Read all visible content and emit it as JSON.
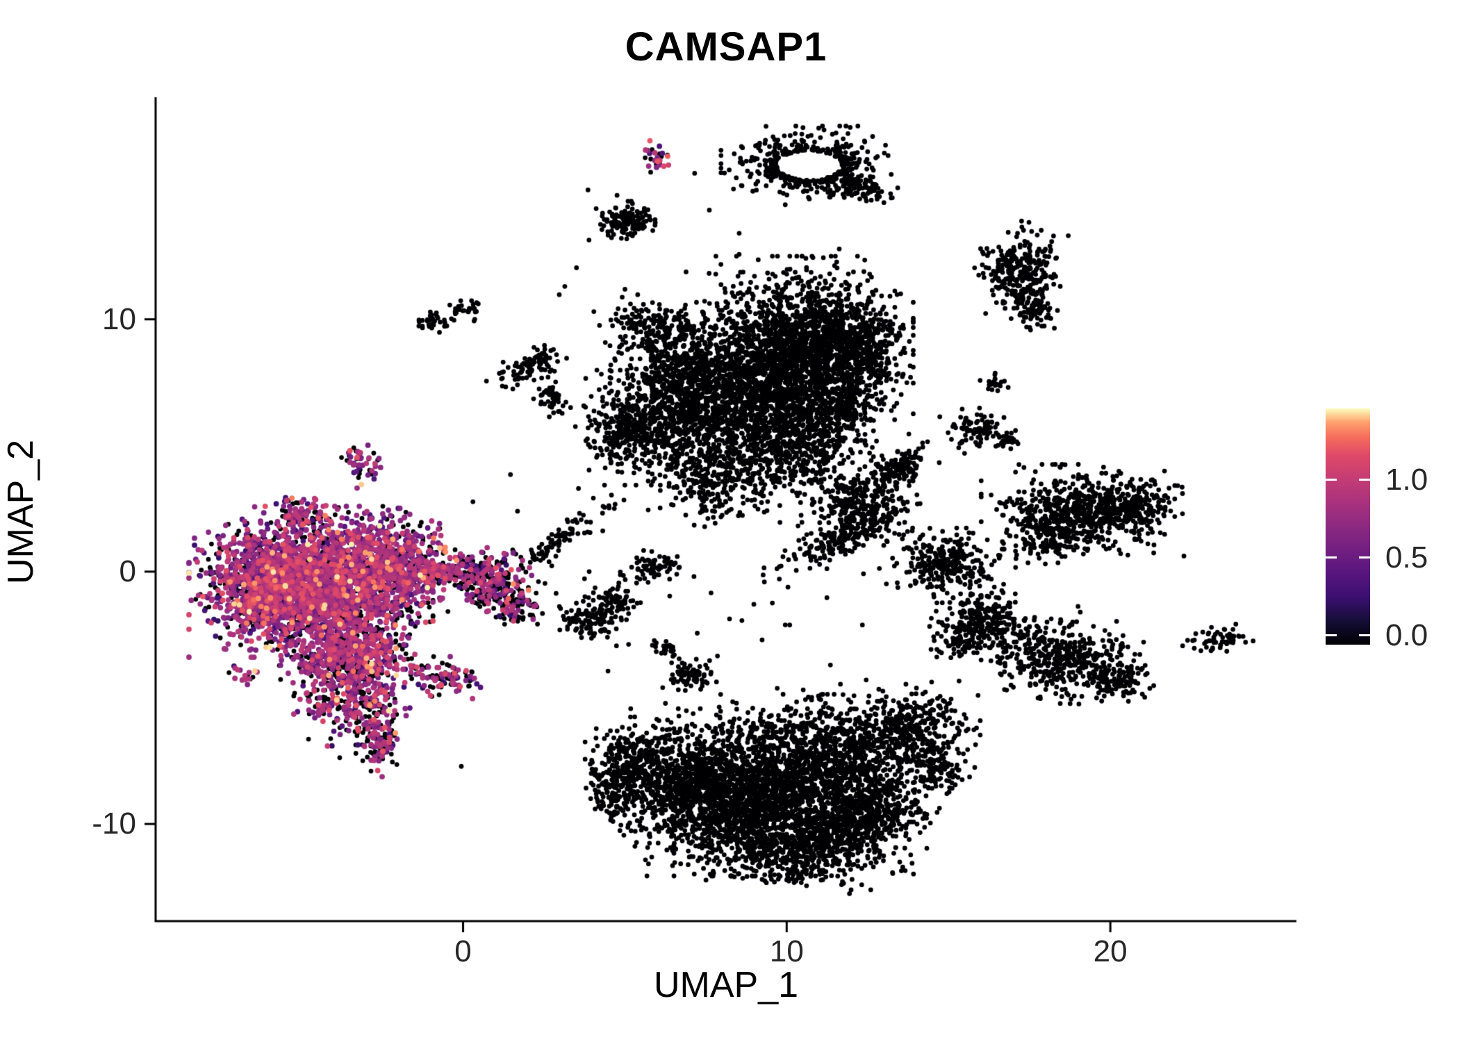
{
  "title": "CAMSAP1",
  "axes": {
    "x_label": "UMAP_1",
    "y_label": "UMAP_2",
    "x_ticks": [
      {
        "value": 0,
        "label": "0"
      },
      {
        "value": 10,
        "label": "10"
      },
      {
        "value": 20,
        "label": "20"
      }
    ],
    "y_ticks": [
      {
        "value": -10,
        "label": "-10"
      },
      {
        "value": 0,
        "label": "0"
      },
      {
        "value": 10,
        "label": "10"
      }
    ]
  },
  "colorbar": {
    "ticks": [
      {
        "value": 1.0,
        "label": "1.0"
      },
      {
        "value": 0.5,
        "label": "0.5"
      },
      {
        "value": 0.0,
        "label": "0.0"
      }
    ],
    "domain": [
      -0.06,
      1.46
    ],
    "gradient": [
      {
        "p": 0.0,
        "c": "#000004"
      },
      {
        "p": 0.1,
        "c": "#140e36"
      },
      {
        "p": 0.2,
        "c": "#3b0f70"
      },
      {
        "p": 0.3,
        "c": "#57157e"
      },
      {
        "p": 0.4,
        "c": "#721f81"
      },
      {
        "p": 0.5,
        "c": "#8c2981"
      },
      {
        "p": 0.6,
        "c": "#a8327d"
      },
      {
        "p": 0.7,
        "c": "#c43c75"
      },
      {
        "p": 0.8,
        "c": "#de4968"
      },
      {
        "p": 0.88,
        "c": "#f66e5c"
      },
      {
        "p": 0.94,
        "c": "#fe9f6d"
      },
      {
        "p": 0.97,
        "c": "#fece91"
      },
      {
        "p": 1.0,
        "c": "#fcfdbf"
      }
    ]
  },
  "chart_data": {
    "type": "scatter",
    "title": "CAMSAP1",
    "xlabel": "UMAP_1",
    "ylabel": "UMAP_2",
    "xlim": [
      -9.5,
      25.75
    ],
    "ylim": [
      -13.85,
      18.8
    ],
    "grid": false,
    "legend_position": "right",
    "expression_range": [
      0.0,
      1.4
    ],
    "zero_expression_color": "#000004",
    "clusters": [
      {
        "x": 10.7,
        "y": 16.1,
        "sx": 1.05,
        "sy": 0.6,
        "n": 430,
        "f": 0,
        "ring": 0.6
      },
      {
        "x": 12.3,
        "y": 15.2,
        "sx": 0.5,
        "sy": 0.22,
        "n": 70,
        "f": 0,
        "r": -25
      },
      {
        "x": 5.1,
        "y": 13.9,
        "sx": 0.38,
        "sy": 0.3,
        "n": 150,
        "f": 0
      },
      {
        "x": -0.9,
        "y": 9.95,
        "sx": 0.28,
        "sy": 0.18,
        "n": 35,
        "f": 0
      },
      {
        "x": 0.05,
        "y": 10.35,
        "sx": 0.22,
        "sy": 0.16,
        "n": 30,
        "f": 0
      },
      {
        "x": 2.1,
        "y": 8.1,
        "sx": 0.55,
        "sy": 0.28,
        "n": 90,
        "f": 0,
        "r": 40
      },
      {
        "x": 2.75,
        "y": 6.9,
        "sx": 0.22,
        "sy": 0.35,
        "n": 45,
        "f": 0
      },
      {
        "x": 4.9,
        "y": 5.6,
        "sx": 0.55,
        "sy": 0.65,
        "n": 170,
        "f": 0
      },
      {
        "x": 6.2,
        "y": 5.9,
        "sx": 0.95,
        "sy": 0.95,
        "n": 520,
        "f": 0
      },
      {
        "x": 6.0,
        "y": 9.5,
        "sx": 0.75,
        "sy": 0.65,
        "n": 230,
        "f": 0
      },
      {
        "x": 7.4,
        "y": 7.6,
        "sx": 1.1,
        "sy": 0.95,
        "n": 700,
        "f": 0
      },
      {
        "x": 8.7,
        "y": 6.3,
        "sx": 1.1,
        "sy": 1.05,
        "n": 480,
        "f": 0
      },
      {
        "x": 10.4,
        "y": 8.6,
        "sx": 1.35,
        "sy": 1.5,
        "n": 2200,
        "f": 0
      },
      {
        "x": 12.1,
        "y": 8.9,
        "sx": 0.7,
        "sy": 0.8,
        "n": 350,
        "f": 0
      },
      {
        "x": 9.3,
        "y": 4.6,
        "sx": 1.3,
        "sy": 0.9,
        "n": 360,
        "f": 0
      },
      {
        "x": 7.8,
        "y": 3.4,
        "sx": 0.8,
        "sy": 0.65,
        "n": 190,
        "f": 0
      },
      {
        "x": 10.6,
        "y": 5.3,
        "sx": 0.7,
        "sy": 0.7,
        "n": 240,
        "f": 0
      },
      {
        "x": 11.9,
        "y": 6.5,
        "sx": 0.5,
        "sy": 0.5,
        "n": 120,
        "f": 0
      },
      {
        "x": 3.0,
        "y": 1.3,
        "sx": 1.05,
        "sy": 0.18,
        "n": 90,
        "f": 0,
        "r": 42
      },
      {
        "x": 12.3,
        "y": 2.6,
        "sx": 0.75,
        "sy": 0.6,
        "n": 300,
        "f": 0
      },
      {
        "x": 11.4,
        "y": 1.1,
        "sx": 1.05,
        "sy": 0.3,
        "n": 140,
        "f": 0,
        "r": 25
      },
      {
        "x": 13.3,
        "y": 3.9,
        "sx": 0.5,
        "sy": 0.3,
        "n": 90,
        "f": 0,
        "r": 30
      },
      {
        "x": 13.6,
        "y": 4.3,
        "sx": 0.45,
        "sy": 0.18,
        "n": 50,
        "f": 0,
        "r": 35
      },
      {
        "x": 17.2,
        "y": 11.9,
        "sx": 0.55,
        "sy": 0.75,
        "n": 260,
        "f": 0,
        "r": -15
      },
      {
        "x": 17.7,
        "y": 10.6,
        "sx": 0.3,
        "sy": 0.45,
        "n": 80,
        "f": 0
      },
      {
        "x": 16.4,
        "y": 7.4,
        "sx": 0.22,
        "sy": 0.18,
        "n": 22,
        "f": 0
      },
      {
        "x": 15.9,
        "y": 5.6,
        "sx": 0.45,
        "sy": 0.35,
        "n": 90,
        "f": 0
      },
      {
        "x": 16.8,
        "y": 5.2,
        "sx": 0.22,
        "sy": 0.18,
        "n": 25,
        "f": 0
      },
      {
        "x": 19.0,
        "y": 2.3,
        "sx": 1.15,
        "sy": 0.75,
        "n": 620,
        "f": 0
      },
      {
        "x": 20.8,
        "y": 2.6,
        "sx": 0.55,
        "sy": 0.5,
        "n": 150,
        "f": 0
      },
      {
        "x": 18.0,
        "y": 1.2,
        "sx": 0.5,
        "sy": 0.4,
        "n": 80,
        "f": 0
      },
      {
        "x": 14.9,
        "y": 0.3,
        "sx": 0.7,
        "sy": 0.55,
        "n": 260,
        "f": 0
      },
      {
        "x": 16.1,
        "y": -1.8,
        "sx": 0.6,
        "sy": 0.5,
        "n": 200,
        "f": 0
      },
      {
        "x": 15.4,
        "y": -2.7,
        "sx": 0.4,
        "sy": 0.35,
        "n": 90,
        "f": 0
      },
      {
        "x": 18.4,
        "y": -3.3,
        "sx": 1.15,
        "sy": 0.7,
        "n": 460,
        "f": 0,
        "r": -18
      },
      {
        "x": 20.3,
        "y": -4.3,
        "sx": 0.5,
        "sy": 0.35,
        "n": 90,
        "f": 0
      },
      {
        "x": 23.3,
        "y": -2.7,
        "sx": 0.42,
        "sy": 0.22,
        "n": 55,
        "f": 0,
        "r": 15
      },
      {
        "x": 5.2,
        "y": -7.6,
        "sx": 0.55,
        "sy": 0.75,
        "n": 220,
        "f": 0
      },
      {
        "x": 4.7,
        "y": -8.8,
        "sx": 0.4,
        "sy": 0.6,
        "n": 130,
        "f": 0
      },
      {
        "x": 6.9,
        "y": -7.9,
        "sx": 0.95,
        "sy": 0.95,
        "n": 500,
        "f": 0
      },
      {
        "x": 8.3,
        "y": -9.2,
        "sx": 1.4,
        "sy": 1.1,
        "n": 1300,
        "f": 0
      },
      {
        "x": 10.3,
        "y": -8.3,
        "sx": 1.25,
        "sy": 1.15,
        "n": 900,
        "f": 0
      },
      {
        "x": 12.3,
        "y": -7.2,
        "sx": 1.05,
        "sy": 0.9,
        "n": 450,
        "f": 0
      },
      {
        "x": 13.9,
        "y": -6.1,
        "sx": 0.8,
        "sy": 0.7,
        "n": 270,
        "f": 0
      },
      {
        "x": 11.6,
        "y": -10.4,
        "sx": 1.05,
        "sy": 0.85,
        "n": 550,
        "f": 0
      },
      {
        "x": 9.6,
        "y": -11.2,
        "sx": 0.9,
        "sy": 0.6,
        "n": 300,
        "f": 0
      },
      {
        "x": 12.9,
        "y": -9.4,
        "sx": 0.7,
        "sy": 0.6,
        "n": 250,
        "f": 0
      },
      {
        "x": 10.5,
        "y": -6.2,
        "sx": 1.6,
        "sy": 0.7,
        "n": 200,
        "f": 0
      },
      {
        "x": 14.6,
        "y": -7.8,
        "sx": 0.5,
        "sy": 0.45,
        "n": 110,
        "f": 0
      },
      {
        "x": 4.0,
        "y": -1.9,
        "sx": 0.5,
        "sy": 0.4,
        "n": 130,
        "f": 0
      },
      {
        "x": 4.8,
        "y": -1.1,
        "sx": 0.3,
        "sy": 0.25,
        "n": 60,
        "f": 0
      },
      {
        "x": 5.9,
        "y": 0.15,
        "sx": 0.4,
        "sy": 0.3,
        "n": 70,
        "f": 0
      },
      {
        "x": 7.0,
        "y": -4.1,
        "sx": 0.32,
        "sy": 0.28,
        "n": 70,
        "f": 0
      },
      {
        "x": 6.3,
        "y": -3.1,
        "sx": 0.2,
        "sy": 0.18,
        "n": 25,
        "f": 0
      },
      {
        "x": 9.5,
        "y": 0.5,
        "sx": 5.0,
        "sy": 3.5,
        "n": 110,
        "f": 0
      },
      {
        "x": 8.0,
        "y": 12.5,
        "sx": 3.0,
        "sy": 1.5,
        "n": 18,
        "f": 0
      },
      {
        "x": -4.7,
        "y": -0.4,
        "sx": 1.45,
        "sy": 1.15,
        "n": 2600,
        "f": 0.78
      },
      {
        "x": -2.0,
        "y": 0.3,
        "sx": 0.75,
        "sy": 0.85,
        "n": 500,
        "f": 0.8
      },
      {
        "x": -6.3,
        "y": -0.9,
        "sx": 0.7,
        "sy": 0.85,
        "n": 380,
        "f": 0.7
      },
      {
        "x": -3.6,
        "y": -3.3,
        "sx": 0.85,
        "sy": 0.8,
        "n": 700,
        "f": 0.75
      },
      {
        "x": -5.0,
        "y": 2.2,
        "sx": 0.45,
        "sy": 0.35,
        "n": 90,
        "f": 0.7
      },
      {
        "x": -3.0,
        "y": -5.6,
        "sx": 0.45,
        "sy": 0.75,
        "n": 180,
        "f": 0.6,
        "r": -25
      },
      {
        "x": -2.55,
        "y": -6.9,
        "sx": 0.28,
        "sy": 0.5,
        "n": 80,
        "f": 0.5,
        "r": -20
      },
      {
        "x": -4.4,
        "y": -5.2,
        "sx": 0.32,
        "sy": 0.28,
        "n": 55,
        "f": 0.6
      },
      {
        "x": -3.1,
        "y": 4.3,
        "sx": 0.28,
        "sy": 0.38,
        "n": 50,
        "f": 0.7,
        "r": 20
      },
      {
        "x": 6.0,
        "y": 16.4,
        "sx": 0.2,
        "sy": 0.26,
        "n": 28,
        "f": 0.65
      },
      {
        "x": -0.5,
        "y": -4.2,
        "sx": 0.5,
        "sy": 0.32,
        "n": 95,
        "f": 0.55
      },
      {
        "x": -6.7,
        "y": -4.1,
        "sx": 0.22,
        "sy": 0.18,
        "n": 18,
        "f": 0.7
      },
      {
        "x": 0.9,
        "y": -0.5,
        "sx": 0.55,
        "sy": 0.5,
        "n": 220,
        "f": 0.45
      },
      {
        "x": 1.7,
        "y": -1.4,
        "sx": 0.38,
        "sy": 0.32,
        "n": 80,
        "f": 0.35
      },
      {
        "x": -0.3,
        "y": 0.1,
        "sx": 0.75,
        "sy": 0.28,
        "n": 150,
        "f": 0.6,
        "r": 15
      }
    ]
  }
}
